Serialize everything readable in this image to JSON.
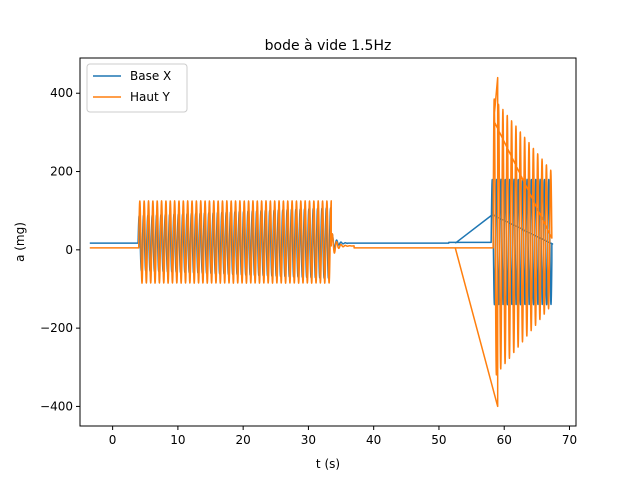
{
  "chart_data": {
    "type": "line",
    "title": "bode à vide 1.5Hz",
    "xlabel": "t (s)",
    "ylabel": "a (mg)",
    "xlim": [
      -5,
      71
    ],
    "ylim": [
      -450,
      490
    ],
    "xticks": [
      0,
      10,
      20,
      30,
      40,
      50,
      60,
      70
    ],
    "yticks": [
      -400,
      -200,
      0,
      200,
      400
    ],
    "grid": false,
    "legend_position": "upper-left",
    "series": [
      {
        "name": "Base X",
        "color": "#1f77b4",
        "segments": [
          {
            "x_start": -3.5,
            "x_end": 3.9,
            "type": "flat",
            "level": 17
          },
          {
            "x_start": 3.9,
            "x_end": 33.5,
            "type": "burst",
            "offset": 17,
            "amp_start": 70,
            "amp_end": 90,
            "freq": 1.5
          },
          {
            "x_start": 33.5,
            "x_end": 36.0,
            "type": "decay",
            "offset": 17,
            "amp": 30,
            "freq": 1.5
          },
          {
            "x_start": 36.0,
            "x_end": 51.5,
            "type": "flat",
            "level": 17
          },
          {
            "x_start": 51.5,
            "x_end": 58.0,
            "type": "flat",
            "level": 19
          },
          {
            "x_start": 58.0,
            "x_end": 67.3,
            "type": "burst",
            "offset": 20,
            "amp_start": 160,
            "amp_end": 160,
            "freq": 1.5
          },
          {
            "x_start": 67.3,
            "x_end": 67.4,
            "type": "flat",
            "level": 15
          }
        ],
        "points": [
          [
            58.2,
            90
          ],
          [
            52.5,
            17
          ]
        ]
      },
      {
        "name": "Haut Y",
        "color": "#ff7f0e",
        "segments": [
          {
            "x_start": -3.5,
            "x_end": 4.0,
            "type": "flat",
            "level": 5
          },
          {
            "x_start": 4.0,
            "x_end": 33.5,
            "type": "burst",
            "offset": 20,
            "amp_start": 105,
            "amp_end": 105,
            "freq": 1.5
          },
          {
            "x_start": 33.5,
            "x_end": 37.0,
            "type": "decay",
            "offset": 10,
            "amp": 40,
            "freq": 1.5
          },
          {
            "x_start": 37.0,
            "x_end": 58.3,
            "type": "flat",
            "level": 5
          },
          {
            "x_start": 58.3,
            "x_end": 67.3,
            "type": "burst",
            "offset": 30,
            "amp_start": 360,
            "amp_end": 170,
            "freq": 1.5
          }
        ],
        "points": [
          [
            58.4,
            330
          ],
          [
            59.0,
            440
          ],
          [
            59.0,
            -400
          ],
          [
            52.5,
            5
          ]
        ]
      }
    ]
  }
}
